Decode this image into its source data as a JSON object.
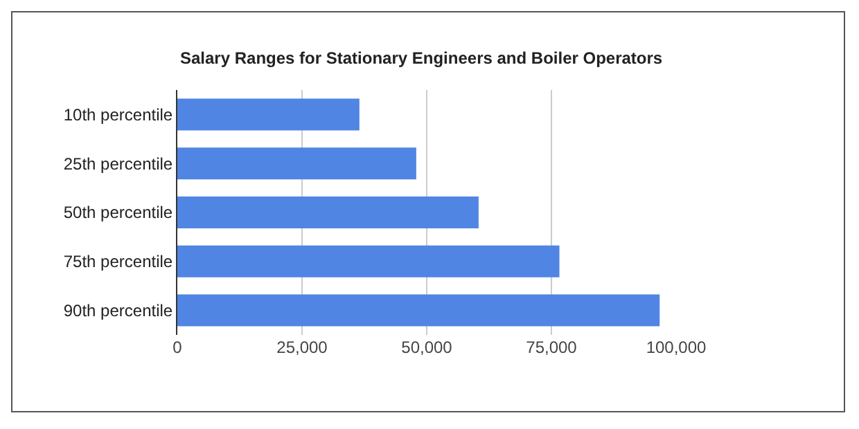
{
  "chart_data": {
    "type": "bar",
    "orientation": "horizontal",
    "title": "Salary Ranges for Stationary Engineers and Boiler Operators",
    "categories": [
      "10th percentile",
      "25th percentile",
      "50th percentile",
      "75th percentile",
      "90th percentile"
    ],
    "values": [
      36500,
      47900,
      60400,
      76600,
      96700
    ],
    "color": "#5085e3",
    "xlim": [
      0,
      100000
    ],
    "xticks": [
      {
        "value": 0,
        "label": "0"
      },
      {
        "value": 25000,
        "label": "25,000"
      },
      {
        "value": 50000,
        "label": "50,000"
      },
      {
        "value": 75000,
        "label": "75,000"
      },
      {
        "value": 100000,
        "label": "100,000"
      }
    ],
    "grid": "x",
    "legend": false
  }
}
